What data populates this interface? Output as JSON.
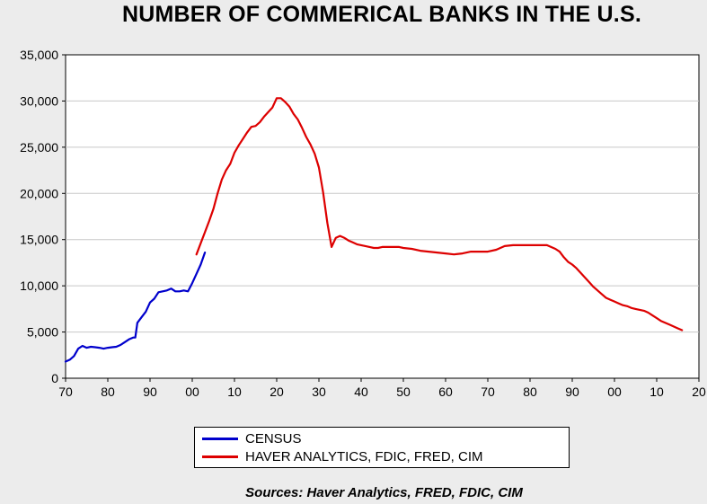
{
  "chart_data": {
    "type": "line",
    "title": "NUMBER OF COMMERICAL BANKS IN THE U.S.",
    "xlabel": "",
    "ylabel": "",
    "x_range": [
      1870,
      2020
    ],
    "ylim": [
      0,
      35000
    ],
    "x_tick_values": [
      1870,
      1880,
      1890,
      1900,
      1910,
      1920,
      1930,
      1940,
      1950,
      1960,
      1970,
      1980,
      1990,
      2000,
      2010,
      2020
    ],
    "x_tick_labels": [
      "70",
      "80",
      "90",
      "00",
      "10",
      "20",
      "30",
      "40",
      "50",
      "60",
      "70",
      "80",
      "90",
      "00",
      "10",
      "20"
    ],
    "y_ticks": [
      0,
      5000,
      10000,
      15000,
      20000,
      25000,
      30000,
      35000
    ],
    "y_tick_labels": [
      "0",
      "5,000",
      "10,000",
      "15,000",
      "20,000",
      "25,000",
      "30,000",
      "35,000"
    ],
    "grid": true,
    "legend_position": "bottom-center",
    "series": [
      {
        "name": "CENSUS",
        "color": "#0000cc",
        "points": [
          [
            1870,
            1800
          ],
          [
            1871,
            2000
          ],
          [
            1872,
            2400
          ],
          [
            1873,
            3200
          ],
          [
            1874,
            3500
          ],
          [
            1875,
            3300
          ],
          [
            1876,
            3400
          ],
          [
            1877,
            3350
          ],
          [
            1878,
            3300
          ],
          [
            1879,
            3200
          ],
          [
            1880,
            3300
          ],
          [
            1881,
            3350
          ],
          [
            1882,
            3400
          ],
          [
            1883,
            3600
          ],
          [
            1884,
            3900
          ],
          [
            1885,
            4200
          ],
          [
            1886,
            4400
          ],
          [
            1886.5,
            4400
          ],
          [
            1887,
            6000
          ],
          [
            1888,
            6600
          ],
          [
            1889,
            7200
          ],
          [
            1890,
            8200
          ],
          [
            1891,
            8600
          ],
          [
            1892,
            9300
          ],
          [
            1893,
            9400
          ],
          [
            1894,
            9500
          ],
          [
            1895,
            9700
          ],
          [
            1896,
            9400
          ],
          [
            1897,
            9400
          ],
          [
            1898,
            9500
          ],
          [
            1899,
            9400
          ],
          [
            1900,
            10300
          ],
          [
            1901,
            11300
          ],
          [
            1902,
            12300
          ],
          [
            1903,
            13600
          ]
        ]
      },
      {
        "name": "HAVER ANALYTICS, FDIC, FRED, CIM",
        "color": "#dd0000",
        "points": [
          [
            1901,
            13400
          ],
          [
            1902,
            14600
          ],
          [
            1903,
            15800
          ],
          [
            1904,
            17000
          ],
          [
            1905,
            18300
          ],
          [
            1906,
            20000
          ],
          [
            1907,
            21500
          ],
          [
            1908,
            22500
          ],
          [
            1909,
            23200
          ],
          [
            1910,
            24400
          ],
          [
            1911,
            25200
          ],
          [
            1912,
            25900
          ],
          [
            1913,
            26600
          ],
          [
            1914,
            27200
          ],
          [
            1915,
            27300
          ],
          [
            1916,
            27700
          ],
          [
            1917,
            28300
          ],
          [
            1918,
            28800
          ],
          [
            1919,
            29300
          ],
          [
            1920,
            30300
          ],
          [
            1921,
            30300
          ],
          [
            1922,
            29900
          ],
          [
            1923,
            29400
          ],
          [
            1924,
            28600
          ],
          [
            1925,
            28000
          ],
          [
            1926,
            27100
          ],
          [
            1927,
            26100
          ],
          [
            1928,
            25300
          ],
          [
            1929,
            24300
          ],
          [
            1930,
            22800
          ],
          [
            1931,
            20100
          ],
          [
            1932,
            16800
          ],
          [
            1933,
            14200
          ],
          [
            1934,
            15200
          ],
          [
            1935,
            15400
          ],
          [
            1936,
            15200
          ],
          [
            1937,
            14900
          ],
          [
            1938,
            14700
          ],
          [
            1939,
            14500
          ],
          [
            1940,
            14400
          ],
          [
            1941,
            14300
          ],
          [
            1942,
            14200
          ],
          [
            1943,
            14100
          ],
          [
            1944,
            14100
          ],
          [
            1945,
            14200
          ],
          [
            1946,
            14200
          ],
          [
            1947,
            14200
          ],
          [
            1948,
            14200
          ],
          [
            1949,
            14200
          ],
          [
            1950,
            14100
          ],
          [
            1952,
            14000
          ],
          [
            1954,
            13800
          ],
          [
            1956,
            13700
          ],
          [
            1958,
            13600
          ],
          [
            1960,
            13500
          ],
          [
            1962,
            13400
          ],
          [
            1964,
            13500
          ],
          [
            1966,
            13700
          ],
          [
            1968,
            13700
          ],
          [
            1970,
            13700
          ],
          [
            1972,
            13900
          ],
          [
            1974,
            14300
          ],
          [
            1976,
            14400
          ],
          [
            1978,
            14400
          ],
          [
            1980,
            14400
          ],
          [
            1982,
            14400
          ],
          [
            1984,
            14400
          ],
          [
            1986,
            14000
          ],
          [
            1987,
            13700
          ],
          [
            1988,
            13100
          ],
          [
            1989,
            12600
          ],
          [
            1990,
            12300
          ],
          [
            1991,
            11900
          ],
          [
            1992,
            11400
          ],
          [
            1993,
            10900
          ],
          [
            1994,
            10400
          ],
          [
            1995,
            9900
          ],
          [
            1996,
            9500
          ],
          [
            1997,
            9100
          ],
          [
            1998,
            8700
          ],
          [
            1999,
            8500
          ],
          [
            2000,
            8300
          ],
          [
            2001,
            8100
          ],
          [
            2002,
            7900
          ],
          [
            2003,
            7800
          ],
          [
            2004,
            7600
          ],
          [
            2005,
            7500
          ],
          [
            2006,
            7400
          ],
          [
            2007,
            7300
          ],
          [
            2008,
            7100
          ],
          [
            2009,
            6800
          ],
          [
            2010,
            6500
          ],
          [
            2011,
            6200
          ],
          [
            2012,
            6000
          ],
          [
            2013,
            5800
          ],
          [
            2014,
            5600
          ],
          [
            2015,
            5400
          ],
          [
            2016,
            5200
          ]
        ]
      }
    ]
  },
  "legend": {
    "items": [
      {
        "label": "CENSUS",
        "color": "#0000cc"
      },
      {
        "label": "HAVER ANALYTICS, FDIC, FRED, CIM",
        "color": "#dd0000"
      }
    ]
  },
  "source_note": "Sources:  Haver Analytics, FRED, FDIC, CIM"
}
